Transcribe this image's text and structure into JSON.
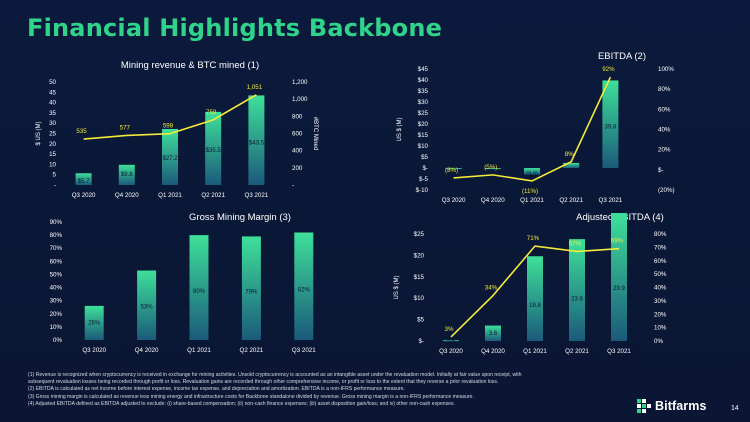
{
  "page": {
    "title": "Financial Highlights Backbone",
    "page_number": "14",
    "logo_text": "Bitfarms"
  },
  "colors": {
    "background": "#0a1633",
    "title_green": "#2fd48a",
    "bar_top": "#3ee09a",
    "bar_bottom": "#1b5a7a",
    "line": "#f4ea3a",
    "axis_text": "#ffffff"
  },
  "footnotes": [
    "(1) Revenue is recognized when cryptocurrency is received in exchange for mining activities. Unsold cryptocurrency is accounted as an intangible asset under the revaluation model. Initially at fair value upon receipt, with",
    "subsequent revaluation losses being recorded through profit or loss. Revaluation gains are recorded through other comprehensive income, or profit or loss to the extent that they reverse a prior revaluation loss.",
    "(2) EBITDA is calculated as net income before interest expense, income tax expense, and depreciation and amortization.  EBITDA is a non-IFRS performance measure.",
    "(3) Gross mining margin is calculated as revenue less mining energy and infrastructure costs for Backbone standalone divided by revenue. Gross mining margin is a non-IFRS performance measure.",
    "(4) Adjusted EBITDA defined as EBITDA adjusted to exclude: (i) share-based compensation; (ii) non-cash finance expenses; (iii) asset disposition gain/loss; and iv) other non-cash expenses."
  ],
  "chart_data": [
    {
      "id": "mining",
      "type": "bar",
      "title": "Mining revenue & BTC mined (1)",
      "categories": [
        "Q3 2020",
        "Q4 2020",
        "Q1 2021",
        "Q2 2021",
        "Q3 2021"
      ],
      "ylabel": "$ US (M)",
      "y2label": "#BTC Mined",
      "ylim": [
        0,
        50
      ],
      "y2lim": [
        0,
        1200
      ],
      "yticks": [
        "-",
        "5",
        "10",
        "15",
        "20",
        "25",
        "30",
        "35",
        "40",
        "45",
        "50"
      ],
      "y2ticks": [
        "-",
        "200",
        "400",
        "600",
        "800",
        "1,000",
        "1,200"
      ],
      "series": [
        {
          "values": [
            5.7,
            9.8,
            27.2,
            35.5,
            43.5
          ],
          "labels": [
            "$5.7",
            "$9.8",
            "$27.2",
            "$35.5",
            "$43.5"
          ]
        },
        {
          "values": [
            535,
            577,
            598,
            759,
            1051
          ],
          "labels": [
            "535",
            "577",
            "598",
            "759",
            "1,051"
          ],
          "axis": "right"
        }
      ]
    },
    {
      "id": "ebitda",
      "type": "bar",
      "title": "EBITDA (2)",
      "categories": [
        "Q3 2020",
        "Q4 2020",
        "Q1 2021",
        "Q2 2021",
        "Q3 2021"
      ],
      "ylabel": "US $ (M)",
      "ylim": [
        -10,
        45
      ],
      "y2lim": [
        -20,
        100
      ],
      "yticks": [
        "$-10",
        "$-5",
        "$-",
        "$5",
        "$10",
        "$15",
        "$20",
        "$25",
        "$30",
        "$35",
        "$40",
        "$45"
      ],
      "y2ticks": [
        "(20%)",
        "$-",
        "20%",
        "40%",
        "60%",
        "80%",
        "100%"
      ],
      "series": [
        {
          "values": [
            -0.3,
            -0.5,
            -3.0,
            2.3,
            39.8
          ],
          "labels": [
            "(0.3)",
            "(0.5)",
            "(3.0)",
            "2.3",
            "39.8"
          ]
        },
        {
          "values": [
            -8,
            -5,
            -11,
            8,
            92
          ],
          "labels": [
            "(8%)",
            "(5%)",
            "(11%)",
            "8%",
            "92%"
          ],
          "axis": "right"
        }
      ]
    },
    {
      "id": "margin",
      "type": "bar",
      "title": "Gross Mining Margin (3)",
      "categories": [
        "Q3 2020",
        "Q4 2020",
        "Q1 2021",
        "Q2 2021",
        "Q3 2021"
      ],
      "ylim": [
        0,
        90
      ],
      "yticks": [
        "0%",
        "10%",
        "20%",
        "30%",
        "40%",
        "50%",
        "60%",
        "70%",
        "80%",
        "90%"
      ],
      "series": [
        {
          "values": [
            26,
            53,
            80,
            79,
            82
          ],
          "labels": [
            "26%",
            "53%",
            "80%",
            "79%",
            "82%"
          ]
        }
      ]
    },
    {
      "id": "adjusted",
      "type": "bar",
      "title": "Adjusted EBITDA (4)",
      "categories": [
        "Q3 2020",
        "Q4 2020",
        "Q1 2021",
        "Q2 2021",
        "Q3 2021"
      ],
      "ylabel": "US $ (M)",
      "ylim": [
        0,
        25
      ],
      "y2lim": [
        0,
        80
      ],
      "yticks": [
        "$-",
        "$5",
        "$10",
        "$15",
        "$20",
        "$25"
      ],
      "y2ticks": [
        "0%",
        "10%",
        "20%",
        "30%",
        "40%",
        "50%",
        "60%",
        "70%",
        "80%"
      ],
      "series": [
        {
          "values": [
            0.2,
            3.6,
            19.8,
            23.8,
            29.9
          ],
          "labels": [
            "0.2",
            "3.6",
            "19.8",
            "23.8",
            "29.9"
          ]
        },
        {
          "values": [
            3,
            34,
            71,
            67,
            69
          ],
          "labels": [
            "3%",
            "34%",
            "71%",
            "67%",
            "69%"
          ],
          "axis": "right"
        }
      ]
    }
  ]
}
